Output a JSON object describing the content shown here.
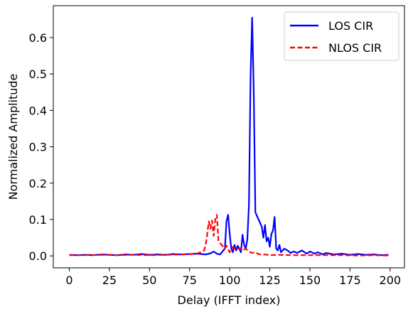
{
  "chart_data": {
    "type": "line",
    "title": "",
    "xlabel": "Delay (IFFT index)",
    "ylabel": "Normalized Amplitude",
    "xlim": [
      -9.95,
      208.95
    ],
    "ylim": [
      -0.0328,
      0.6878
    ],
    "xticks": [
      0,
      25,
      50,
      75,
      100,
      125,
      150,
      175,
      200
    ],
    "xtick_labels": [
      "0",
      "25",
      "50",
      "75",
      "100",
      "125",
      "150",
      "175",
      "200"
    ],
    "yticks": [
      0.0,
      0.1,
      0.2,
      0.3,
      0.4,
      0.5,
      0.6
    ],
    "ytick_labels": [
      "0.0",
      "0.1",
      "0.2",
      "0.3",
      "0.4",
      "0.5",
      "0.6"
    ],
    "grid": false,
    "legend_position": "top-right",
    "series": [
      {
        "name": "LOS CIR",
        "color": "#0000ff",
        "style": "solid",
        "points": [
          [
            0,
            0.003
          ],
          [
            5,
            0.002
          ],
          [
            10,
            0.003
          ],
          [
            15,
            0.002
          ],
          [
            20,
            0.004
          ],
          [
            25,
            0.003
          ],
          [
            30,
            0.002
          ],
          [
            35,
            0.004
          ],
          [
            40,
            0.003
          ],
          [
            45,
            0.005
          ],
          [
            50,
            0.003
          ],
          [
            55,
            0.004
          ],
          [
            60,
            0.003
          ],
          [
            65,
            0.005
          ],
          [
            70,
            0.004
          ],
          [
            75,
            0.005
          ],
          [
            80,
            0.006
          ],
          [
            85,
            0.004
          ],
          [
            88,
            0.007
          ],
          [
            90,
            0.012
          ],
          [
            92,
            0.006
          ],
          [
            94,
            0.004
          ],
          [
            96,
            0.015
          ],
          [
            97,
            0.02
          ],
          [
            98,
            0.095
          ],
          [
            99,
            0.113
          ],
          [
            100,
            0.06
          ],
          [
            101,
            0.02
          ],
          [
            102,
            0.01
          ],
          [
            103,
            0.03
          ],
          [
            104,
            0.015
          ],
          [
            105,
            0.028
          ],
          [
            106,
            0.02
          ],
          [
            107,
            0.01
          ],
          [
            108,
            0.058
          ],
          [
            109,
            0.03
          ],
          [
            110,
            0.02
          ],
          [
            111,
            0.045
          ],
          [
            112,
            0.14
          ],
          [
            113,
            0.49
          ],
          [
            114,
            0.655
          ],
          [
            115,
            0.45
          ],
          [
            116,
            0.12
          ],
          [
            117,
            0.11
          ],
          [
            118,
            0.1
          ],
          [
            119,
            0.09
          ],
          [
            120,
            0.08
          ],
          [
            121,
            0.05
          ],
          [
            122,
            0.085
          ],
          [
            123,
            0.04
          ],
          [
            124,
            0.05
          ],
          [
            125,
            0.025
          ],
          [
            126,
            0.06
          ],
          [
            127,
            0.07
          ],
          [
            128,
            0.107
          ],
          [
            129,
            0.02
          ],
          [
            130,
            0.015
          ],
          [
            131,
            0.03
          ],
          [
            132,
            0.01
          ],
          [
            134,
            0.02
          ],
          [
            136,
            0.015
          ],
          [
            138,
            0.008
          ],
          [
            140,
            0.012
          ],
          [
            142,
            0.008
          ],
          [
            145,
            0.015
          ],
          [
            148,
            0.006
          ],
          [
            150,
            0.012
          ],
          [
            153,
            0.006
          ],
          [
            155,
            0.01
          ],
          [
            158,
            0.004
          ],
          [
            160,
            0.008
          ],
          [
            165,
            0.004
          ],
          [
            170,
            0.006
          ],
          [
            175,
            0.003
          ],
          [
            180,
            0.005
          ],
          [
            185,
            0.003
          ],
          [
            190,
            0.004
          ],
          [
            195,
            0.002
          ],
          [
            199,
            0.003
          ]
        ]
      },
      {
        "name": "NLOS CIR",
        "color": "#ff0000",
        "style": "dashed",
        "points": [
          [
            0,
            0.002
          ],
          [
            10,
            0.002
          ],
          [
            20,
            0.003
          ],
          [
            30,
            0.002
          ],
          [
            40,
            0.003
          ],
          [
            50,
            0.002
          ],
          [
            60,
            0.003
          ],
          [
            70,
            0.004
          ],
          [
            75,
            0.005
          ],
          [
            78,
            0.006
          ],
          [
            80,
            0.007
          ],
          [
            82,
            0.01
          ],
          [
            84,
            0.015
          ],
          [
            85,
            0.03
          ],
          [
            86,
            0.06
          ],
          [
            87,
            0.095
          ],
          [
            88,
            0.075
          ],
          [
            89,
            0.097
          ],
          [
            90,
            0.055
          ],
          [
            91,
            0.1
          ],
          [
            92,
            0.113
          ],
          [
            93,
            0.04
          ],
          [
            94,
            0.035
          ],
          [
            95,
            0.03
          ],
          [
            96,
            0.025
          ],
          [
            97,
            0.02
          ],
          [
            98,
            0.028
          ],
          [
            100,
            0.01
          ],
          [
            102,
            0.025
          ],
          [
            104,
            0.018
          ],
          [
            106,
            0.022
          ],
          [
            108,
            0.015
          ],
          [
            110,
            0.02
          ],
          [
            112,
            0.012
          ],
          [
            114,
            0.008
          ],
          [
            116,
            0.01
          ],
          [
            118,
            0.005
          ],
          [
            120,
            0.003
          ],
          [
            122,
            0.004
          ],
          [
            125,
            0.002
          ],
          [
            130,
            0.003
          ],
          [
            140,
            0.002
          ],
          [
            150,
            0.002
          ],
          [
            160,
            0.002
          ],
          [
            170,
            0.002
          ],
          [
            180,
            0.001
          ],
          [
            190,
            0.002
          ],
          [
            199,
            0.001
          ]
        ]
      }
    ]
  }
}
